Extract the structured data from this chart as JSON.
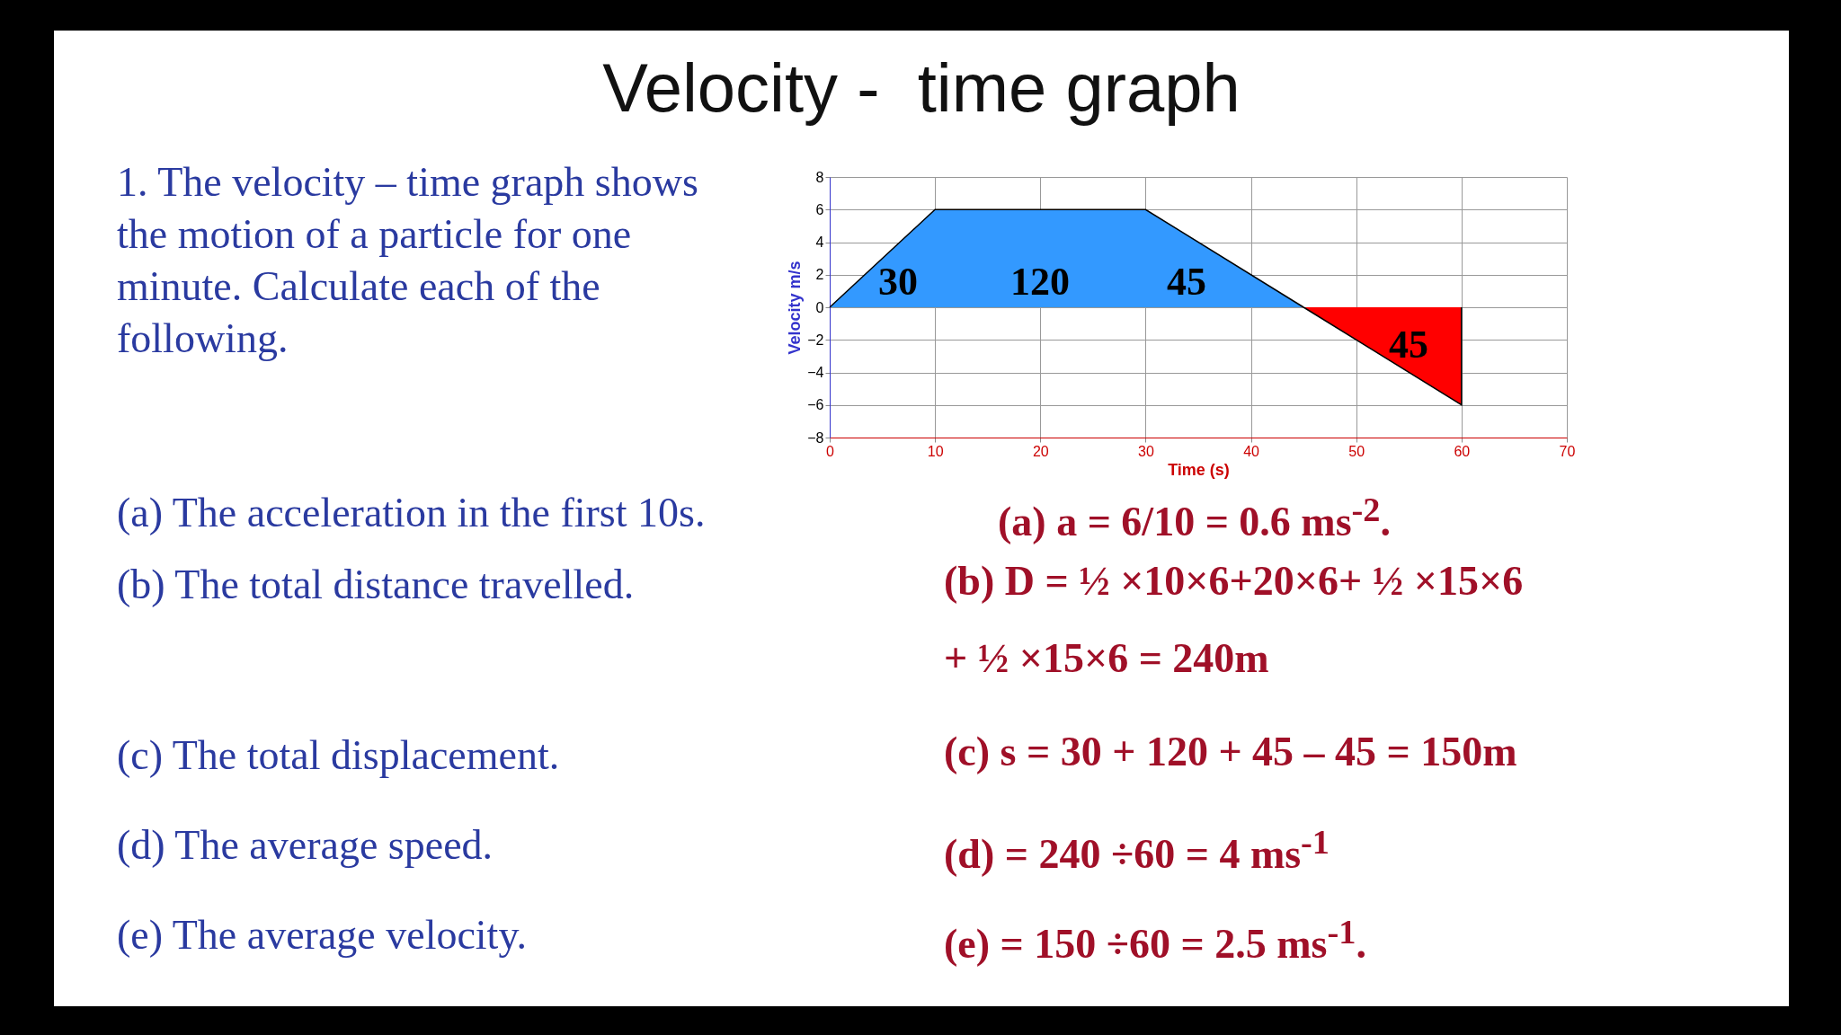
{
  "chart_data": {
    "type": "area",
    "title": "Velocity -  time graph",
    "xlabel": "Time (s)",
    "ylabel": "Velocity m/s",
    "xlim": [
      0,
      70
    ],
    "ylim": [
      -8,
      8
    ],
    "xticks": [
      0,
      10,
      20,
      30,
      40,
      50,
      60,
      70
    ],
    "yticks": [
      -8,
      -6,
      -4,
      -2,
      0,
      2,
      4,
      6,
      8
    ],
    "grid": true,
    "series": [
      {
        "color": "#3399ff",
        "x": [
          0,
          10,
          30,
          45
        ],
        "values": [
          0,
          6,
          6,
          0
        ]
      },
      {
        "color": "#ff0000",
        "x": [
          45,
          60,
          60
        ],
        "values": [
          0,
          -6,
          0
        ]
      }
    ],
    "annotations": [
      "30",
      "120",
      "45",
      "45",
      "1. The velocity – time graph shows the motion of a particle for one minute. Calculate each of the following.",
      "(a) The acceleration in the first 10s.",
      "(a)  a = 6/10 = 0.6 ms$^{-2}$.",
      "(b) The total distance travelled.",
      "(b) D = ½ ×10×6+20×6+ ½ ×15×6 + ½ ×15×6 = 240m",
      "(c) The total displacement.",
      "(c) s = 30 + 120 + 45 – 45 = 150m",
      "(d) The average speed.",
      "(d)  = 240 ÷60 = 4 ms$^{-1}$",
      "(e) The average velocity.",
      "(e)  = 150 ÷60 = 2.5 ms$^{-1}$."
    ]
  }
}
